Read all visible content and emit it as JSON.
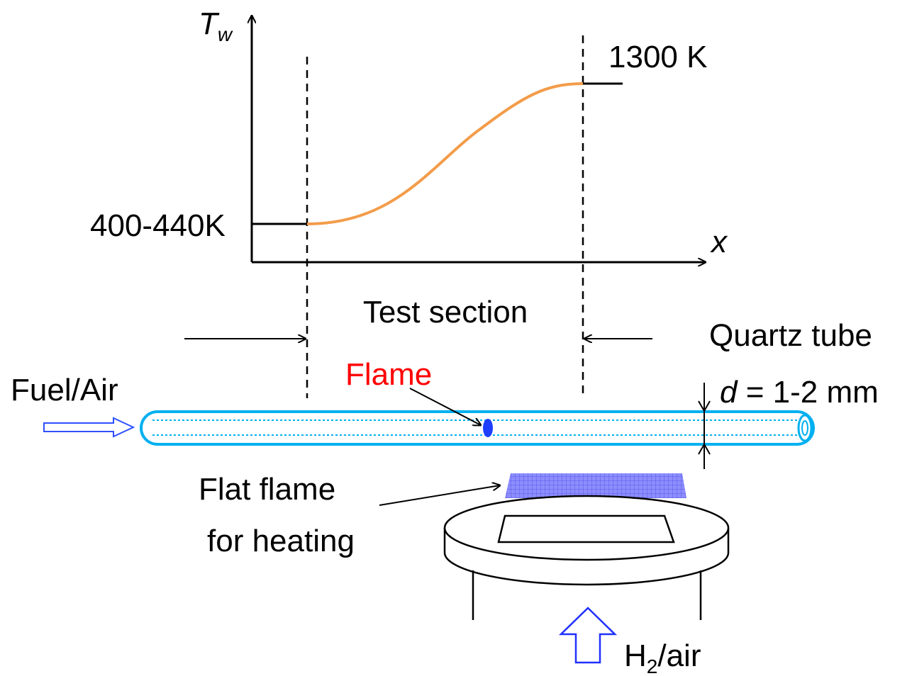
{
  "plot": {
    "y_axis_label": {
      "main": "T",
      "sub": "w"
    },
    "x_axis_label": "x",
    "high_temp_label": "1300 K",
    "low_temp_label": "400-440K",
    "section_label": "Test section"
  },
  "apparatus": {
    "tube_label": "Quartz tube",
    "diameter_label": {
      "var": "d",
      "rest": " = 1-2 mm"
    },
    "inlet_label": "Fuel/Air",
    "flame_label": "Flame",
    "heater_label": [
      "Flat flame",
      "for heating"
    ],
    "burner_gas_label": {
      "main": "H",
      "sub": "2",
      "rest": "/air"
    }
  }
}
